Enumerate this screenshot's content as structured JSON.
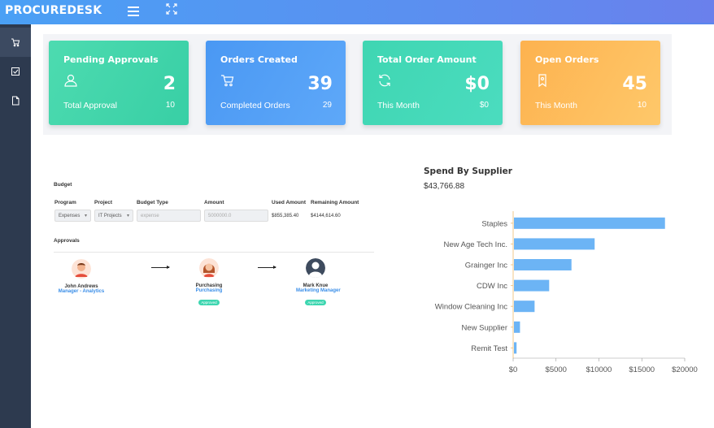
{
  "app": {
    "brand": "PROCUREDESK"
  },
  "cards": [
    {
      "title": "Pending Approvals",
      "icon": "user-icon",
      "value": "2",
      "sub_label": "Total Approval",
      "sub_value": "10"
    },
    {
      "title": "Orders Created",
      "icon": "cart-icon",
      "value": "39",
      "sub_label": "Completed Orders",
      "sub_value": "29"
    },
    {
      "title": "Total Order Amount",
      "icon": "refresh-icon",
      "value": "$0",
      "sub_label": "This Month",
      "sub_value": "$0"
    },
    {
      "title": "Open Orders",
      "icon": "bookmark-icon",
      "value": "45",
      "sub_label": "This Month",
      "sub_value": "10"
    }
  ],
  "budget": {
    "title": "Budget",
    "headers": {
      "program": "Program",
      "project": "Project",
      "budget_type": "Budget Type",
      "amount": "Amount",
      "used_amount": "Used Amount",
      "remaining_amount": "Remaining Amount"
    },
    "program": "Expenses",
    "project": "IT Projects",
    "budget_type_placeholder": "expense",
    "amount_placeholder": "5000000.0",
    "used_amount": "$855,385.40",
    "remaining_amount": "$4144,614.60"
  },
  "approvals": {
    "title": "Approvals",
    "people": [
      {
        "name": "John Andrews",
        "role": "Manager - Analytics",
        "badge": ""
      },
      {
        "name": "Purchasing",
        "role": "Purchasing",
        "badge": "Approved"
      },
      {
        "name": "Mark Knue",
        "role": "Marketing Manager",
        "badge": "Approved"
      }
    ]
  },
  "spend": {
    "title": "Spend By Supplier",
    "total": "$43,766.88"
  },
  "chart_data": {
    "type": "bar",
    "orientation": "horizontal",
    "categories": [
      "Staples",
      "New Age Tech Inc.",
      "Grainger Inc",
      "CDW Inc",
      "Window Cleaning Inc",
      "New Supplier",
      "Remit Test"
    ],
    "values": [
      17700,
      9500,
      6800,
      4200,
      2500,
      800,
      400
    ],
    "xlim": [
      0,
      20000
    ],
    "x_ticks": [
      "$0",
      "$5000",
      "$10000",
      "$15000",
      "$20000"
    ],
    "color": "#6cb4f5",
    "grid": false
  }
}
